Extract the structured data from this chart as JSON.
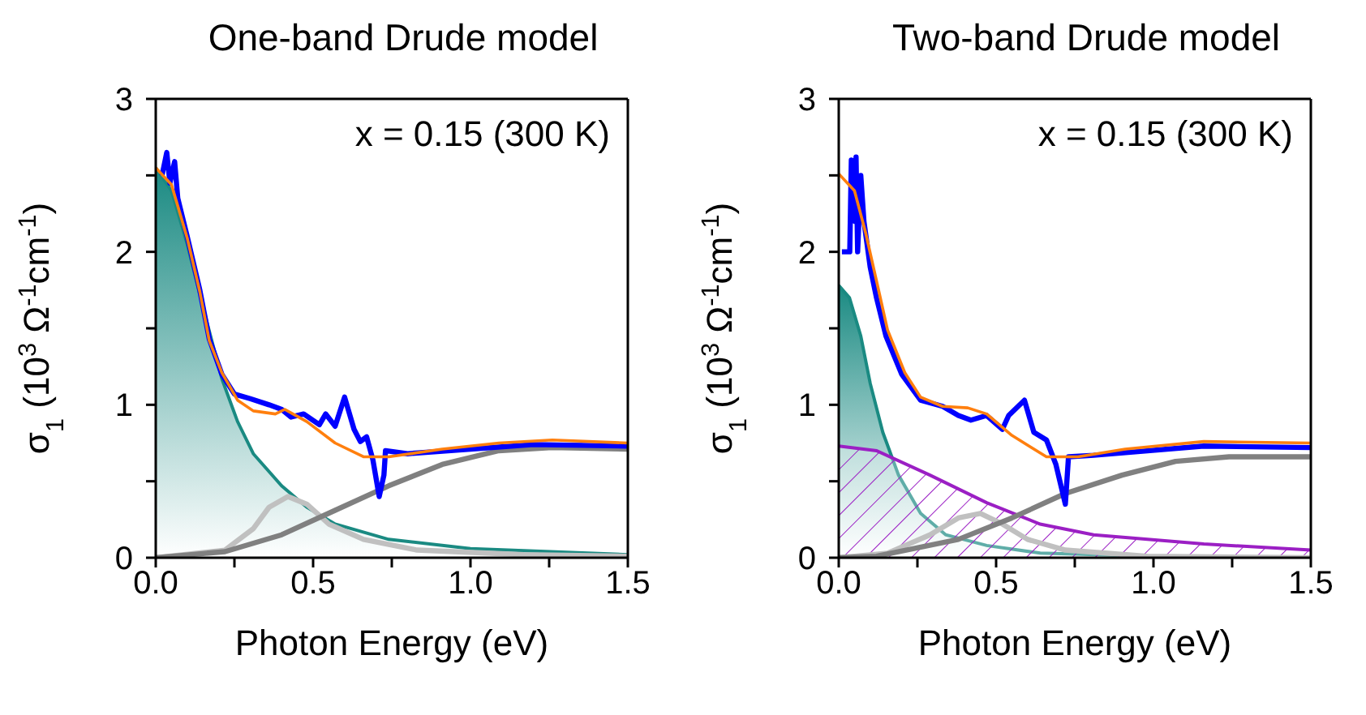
{
  "chart_data": [
    {
      "type": "line",
      "title": "One-band Drude model",
      "xlabel": "Photon Energy (eV)",
      "ylabel": "σ$_{1}$ (10$^{3}$ Ω$^{-1}$cm$^{-1}$)",
      "annotations": [
        "x = 0.15 (300 K)"
      ],
      "xlim": [
        0,
        1.5
      ],
      "xticks": [
        {
          "value": 0,
          "label": "0.0"
        },
        {
          "value": 0.25,
          "label": null
        },
        {
          "value": 0.5,
          "label": "0.5"
        },
        {
          "value": 0.75,
          "label": null
        },
        {
          "value": 1,
          "label": "1.0"
        },
        {
          "value": 1.25,
          "label": null
        },
        {
          "value": 1.5,
          "label": "1.5"
        }
      ],
      "ylim": [
        0,
        3
      ],
      "yticks": [
        0,
        {
          "value": 0.5,
          "label": null
        },
        1,
        {
          "value": 1.5,
          "label": null
        },
        2,
        {
          "value": 2.5,
          "label": null
        },
        3
      ],
      "series": [
        {
          "type": "area",
          "color": "#1a8a82",
          "x": [
            0,
            0.05,
            0.1,
            0.155,
            0.21,
            0.26,
            0.31,
            0.4,
            0.48,
            0.57,
            0.74,
            1.0,
            1.5
          ],
          "values": [
            2.55,
            2.4,
            2.05,
            1.6,
            1.17,
            0.89,
            0.68,
            0.47,
            0.33,
            0.22,
            0.12,
            0.06,
            0.02
          ]
        },
        {
          "color": "#c0c0c0",
          "x": [
            0,
            0.22,
            0.31,
            0.36,
            0.42,
            0.48,
            0.55,
            0.66,
            0.83,
            1.17,
            1.5
          ],
          "values": [
            0,
            0.05,
            0.19,
            0.33,
            0.4,
            0.35,
            0.22,
            0.12,
            0.05,
            0.02,
            0.01
          ]
        },
        {
          "color": "#808080",
          "x": [
            0,
            0.22,
            0.4,
            0.57,
            0.74,
            0.91,
            1.09,
            1.26,
            1.5
          ],
          "values": [
            0,
            0.04,
            0.15,
            0.31,
            0.47,
            0.61,
            0.7,
            0.72,
            0.71
          ]
        },
        {
          "type": "line",
          "color": "#0000ff",
          "x": [
            0.02,
            0.035,
            0.045,
            0.06,
            0.07,
            0.1,
            0.14,
            0.17,
            0.21,
            0.25,
            0.3,
            0.36,
            0.4,
            0.43,
            0.47,
            0.52,
            0.54,
            0.57,
            0.6,
            0.63,
            0.65,
            0.67,
            0.69,
            0.71,
            0.725,
            0.73,
            0.8,
            1.0,
            1.2,
            1.5
          ],
          "values": [
            2.5,
            2.65,
            2.45,
            2.59,
            2.35,
            2.1,
            1.75,
            1.43,
            1.2,
            1.07,
            1.04,
            1.0,
            0.97,
            0.92,
            0.94,
            0.87,
            0.94,
            0.86,
            1.05,
            0.84,
            0.76,
            0.79,
            0.64,
            0.4,
            0.54,
            0.7,
            0.68,
            0.71,
            0.74,
            0.73
          ]
        },
        {
          "type": "line",
          "color": "#ff7f0e",
          "x": [
            0,
            0.05,
            0.1,
            0.14,
            0.17,
            0.21,
            0.26,
            0.31,
            0.38,
            0.41,
            0.48,
            0.57,
            0.66,
            0.74,
            0.91,
            1.09,
            1.26,
            1.5
          ],
          "values": [
            2.55,
            2.44,
            2.09,
            1.74,
            1.42,
            1.21,
            1.03,
            0.96,
            0.94,
            0.97,
            0.89,
            0.75,
            0.66,
            0.66,
            0.71,
            0.75,
            0.77,
            0.75
          ]
        }
      ]
    },
    {
      "type": "line",
      "title": "Two-band Drude model",
      "xlabel": "Photon Energy (eV)",
      "ylabel": "σ$_{1}$ (10$^{3}$ Ω$^{-1}$cm$^{-1}$)",
      "annotations": [
        "x = 0.15 (300 K)"
      ],
      "xlim": [
        0,
        1.5
      ],
      "xticks": [
        {
          "value": 0,
          "label": "0.0"
        },
        {
          "value": 0.25,
          "label": null
        },
        {
          "value": 0.5,
          "label": "0.5"
        },
        {
          "value": 0.75,
          "label": null
        },
        {
          "value": 1,
          "label": "1.0"
        },
        {
          "value": 1.25,
          "label": null
        },
        {
          "value": 1.5,
          "label": "1.5"
        }
      ],
      "ylim": [
        0,
        3
      ],
      "yticks": [
        0,
        {
          "value": 0.5,
          "label": null
        },
        1,
        {
          "value": 1.5,
          "label": null
        },
        2,
        {
          "value": 2.5,
          "label": null
        },
        3
      ],
      "series": [
        {
          "type": "area",
          "color": "#1a8a82",
          "x": [
            0,
            0.034,
            0.07,
            0.1,
            0.14,
            0.19,
            0.26,
            0.34,
            0.47,
            0.64,
            0.98,
            1.5
          ],
          "values": [
            1.78,
            1.7,
            1.45,
            1.14,
            0.82,
            0.54,
            0.29,
            0.15,
            0.08,
            0.03,
            0.01,
            0
          ]
        },
        {
          "type": "area",
          "color": "#9b1fc4",
          "x": [
            0,
            0.12,
            0.29,
            0.47,
            0.64,
            0.81,
            1.16,
            1.5
          ],
          "values": [
            0.73,
            0.7,
            0.54,
            0.36,
            0.22,
            0.15,
            0.09,
            0.05
          ]
        },
        {
          "color": "#c0c0c0",
          "x": [
            0,
            0.155,
            0.29,
            0.38,
            0.45,
            0.52,
            0.6,
            0.72,
            0.98,
            1.5
          ],
          "values": [
            0,
            0.03,
            0.15,
            0.26,
            0.29,
            0.22,
            0.12,
            0.05,
            0.01,
            0
          ]
        },
        {
          "color": "#808080",
          "x": [
            0,
            0.12,
            0.38,
            0.55,
            0.72,
            0.9,
            1.07,
            1.24,
            1.5
          ],
          "values": [
            0,
            0.01,
            0.12,
            0.26,
            0.42,
            0.54,
            0.63,
            0.66,
            0.66
          ]
        },
        {
          "type": "line",
          "color": "#0000ff",
          "x": [
            0.01,
            0.035,
            0.04,
            0.05,
            0.055,
            0.06,
            0.07,
            0.08,
            0.1,
            0.12,
            0.15,
            0.2,
            0.26,
            0.33,
            0.38,
            0.42,
            0.47,
            0.52,
            0.54,
            0.59,
            0.62,
            0.66,
            0.69,
            0.72,
            0.73,
            0.81,
            1.16,
            1.5
          ],
          "values": [
            2.0,
            2.0,
            2.6,
            2.2,
            2.62,
            2.0,
            2.5,
            2.2,
            1.9,
            1.7,
            1.45,
            1.2,
            1.03,
            0.99,
            0.93,
            0.9,
            0.93,
            0.84,
            0.93,
            1.03,
            0.82,
            0.77,
            0.61,
            0.35,
            0.66,
            0.67,
            0.73,
            0.72
          ]
        },
        {
          "type": "line",
          "color": "#ff7f0e",
          "x": [
            0,
            0.05,
            0.086,
            0.12,
            0.155,
            0.21,
            0.26,
            0.33,
            0.41,
            0.47,
            0.55,
            0.66,
            0.76,
            0.91,
            1.16,
            1.5
          ],
          "values": [
            2.51,
            2.4,
            2.12,
            1.81,
            1.49,
            1.21,
            1.05,
            0.99,
            0.98,
            0.94,
            0.8,
            0.66,
            0.66,
            0.71,
            0.76,
            0.75
          ]
        }
      ]
    }
  ]
}
